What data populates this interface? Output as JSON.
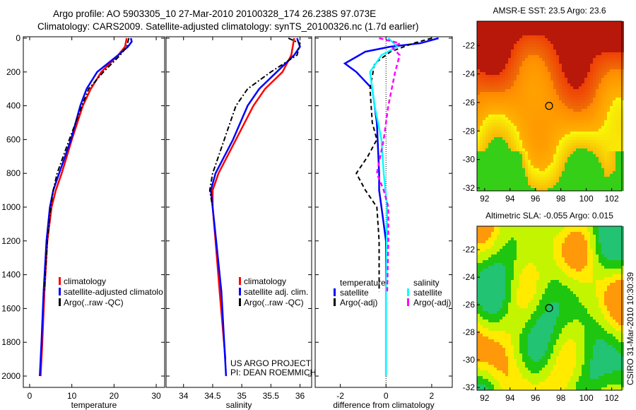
{
  "title": {
    "line1": "Argo profile: AO 5903305_10 27-Mar-2010 20100328_174 26.238S 97.073E",
    "line2": "Climatology: CARS2009. Satellite-adjusted climatology: synTS_20100326.nc (1.7d earlier)"
  },
  "credit": "CSIRO 31-Mar-2010 10:30:39",
  "project_note": [
    "US ARGO PROJECT",
    "PI: DEAN ROEMMICH"
  ],
  "colors": {
    "red": "#ff0000",
    "blue": "#0000ff",
    "black": "#000000",
    "cyan": "#00ffff",
    "magenta": "#ff00ff"
  },
  "chart_data": [
    {
      "type": "line",
      "xlabel": "temperature",
      "ylabel": "",
      "xlim": [
        -1.5,
        32
      ],
      "ylim": [
        2000,
        0
      ],
      "xticks": [
        "0",
        "10",
        "20",
        "30"
      ],
      "xtickvals": [
        0,
        10,
        20,
        30
      ],
      "yticks": [
        "0",
        "200",
        "400",
        "600",
        "800",
        "1000",
        "1200",
        "1400",
        "1600",
        "1800",
        "2000"
      ],
      "legend": [
        "climatology",
        "satellite-adjusted climatolo",
        "Argo(..raw -QC)"
      ],
      "legend_placement": "bottom-right",
      "series": [
        {
          "name": "climatology",
          "color": "red",
          "style": "solid",
          "depth": [
            0,
            50,
            100,
            200,
            300,
            400,
            600,
            800,
            900,
            1000,
            1200,
            1500,
            1800,
            2000
          ],
          "values": [
            23,
            22.6,
            21,
            17,
            14.5,
            12.6,
            10,
            7.6,
            6.2,
            5.2,
            4.2,
            3.5,
            3,
            2.6
          ]
        },
        {
          "name": "satellite-adjusted climatology",
          "color": "blue",
          "style": "solid",
          "depth": [
            0,
            20,
            50,
            100,
            200,
            300,
            400,
            600,
            800,
            900,
            1000,
            1200,
            1500,
            1800,
            2000
          ],
          "values": [
            24,
            24.2,
            23.3,
            21,
            16,
            13.5,
            12,
            9.8,
            7,
            5.6,
            4.8,
            4,
            3.3,
            2.8,
            2.4
          ]
        },
        {
          "name": "Argo(..raw -QC)",
          "color": "black",
          "style": "dashdot",
          "depth": [
            0,
            50,
            100,
            200,
            300,
            400,
            600,
            800,
            900,
            1000,
            1200,
            1400,
            1500
          ],
          "values": [
            23.5,
            23,
            21.5,
            17.5,
            14,
            12.4,
            9.4,
            6.5,
            5.6,
            5,
            4.2,
            3.7,
            3.5
          ]
        }
      ]
    },
    {
      "type": "line",
      "xlabel": "salinity",
      "xlim": [
        33.7,
        36.2
      ],
      "ylim": [
        2000,
        0
      ],
      "xticks": [
        "34",
        "34.5",
        "35",
        "35.5",
        "36"
      ],
      "xtickvals": [
        34,
        34.5,
        35,
        35.5,
        36
      ],
      "legend": [
        "climatology",
        "satellite adj. clim.",
        "Argo(..raw -QC)"
      ],
      "legend_placement": "bottom-right",
      "series": [
        {
          "name": "climatology",
          "color": "red",
          "style": "solid",
          "depth": [
            0,
            100,
            200,
            300,
            400,
            600,
            800,
            900,
            1000,
            1200,
            1500,
            1900
          ],
          "values": [
            35.9,
            35.85,
            35.7,
            35.4,
            35.2,
            34.9,
            34.6,
            34.5,
            34.5,
            34.55,
            34.62,
            34.72
          ]
        },
        {
          "name": "satellite adj. clim.",
          "color": "blue",
          "style": "solid",
          "depth": [
            0,
            50,
            100,
            200,
            300,
            400,
            600,
            800,
            900,
            1000,
            1200,
            1500,
            2000
          ],
          "values": [
            35.95,
            36,
            35.9,
            35.6,
            35.3,
            35.1,
            34.85,
            34.55,
            34.47,
            34.5,
            34.56,
            34.65,
            34.73
          ]
        },
        {
          "name": "Argo(..raw -QC)",
          "color": "black",
          "style": "dashdot",
          "depth": [
            0,
            30,
            100,
            200,
            300,
            400,
            600,
            800,
            900,
            1000
          ],
          "values": [
            35.8,
            36,
            35.95,
            35.5,
            35.1,
            34.9,
            34.7,
            34.5,
            34.45,
            34.5
          ]
        }
      ]
    },
    {
      "type": "line",
      "xlabel": "difference from climatology",
      "xlim": [
        -3.1,
        2.9
      ],
      "ylim": [
        2000,
        0
      ],
      "xticks": [
        "-2",
        "0",
        "2"
      ],
      "xtickvals": [
        -2,
        0,
        2
      ],
      "legend_groups": [
        {
          "title": "temperature",
          "items": [
            "satellite",
            "Argo(-adj)"
          ]
        },
        {
          "title": "salinity",
          "items": [
            "satellite",
            "Argo(-adj)"
          ]
        }
      ],
      "series": [
        {
          "name": "temperature satellite",
          "color": "blue",
          "style": "solid",
          "depth": [
            0,
            30,
            50,
            80,
            150,
            200,
            300,
            500,
            800,
            900,
            1000,
            1200,
            1500,
            2000
          ],
          "values": [
            2.3,
            1.5,
            0.2,
            -0.9,
            -1.8,
            -1.3,
            -0.6,
            -0.4,
            -0.3,
            -0.3,
            -0.2,
            0,
            0,
            0
          ]
        },
        {
          "name": "temperature Argo(-adj)",
          "color": "black",
          "style": "dashed",
          "depth": [
            0,
            30,
            80,
            150,
            300,
            500,
            600,
            700,
            800,
            900,
            1000,
            1200,
            1500
          ],
          "values": [
            2,
            1.2,
            0.2,
            -0.5,
            -0.7,
            -0.6,
            -0.4,
            -0.8,
            -1.3,
            -0.9,
            -0.4,
            -0.3,
            -0.3
          ]
        },
        {
          "name": "salinity satellite",
          "color": "cyan",
          "style": "solid",
          "depth": [
            0,
            50,
            100,
            200,
            400,
            600,
            800,
            1000,
            1500,
            2000
          ],
          "values": [
            0.1,
            0.5,
            -0.2,
            -0.7,
            -0.5,
            -0.2,
            -0.1,
            0.05,
            0,
            0
          ]
        },
        {
          "name": "salinity Argo(-adj)",
          "color": "magenta",
          "style": "dashed",
          "depth": [
            0,
            30,
            60,
            100,
            200,
            400,
            600,
            800,
            900,
            1000,
            1200,
            1500
          ],
          "values": [
            -0.3,
            0.6,
            0.3,
            0.6,
            0.4,
            0.1,
            -0.1,
            -0.4,
            -0.1,
            0.1,
            0.1,
            0.05
          ]
        }
      ]
    },
    {
      "type": "heatmap",
      "title": "AMSR-E SST: 23.5 Argo: 23.6",
      "xlim": [
        91.4,
        102.8
      ],
      "ylim": [
        -32.2,
        -20.3
      ],
      "xticks": [
        "92",
        "94",
        "96",
        "98",
        "100",
        "102"
      ],
      "yticks": [
        "-22",
        "-24",
        "-26",
        "-28",
        "-30",
        "-32"
      ],
      "marker": {
        "lon": 97.073,
        "lat": -26.238
      }
    },
    {
      "type": "heatmap",
      "title": "Altimetric SLA: -0.055 Argo: 0.015",
      "xlim": [
        91.4,
        102.8
      ],
      "ylim": [
        -32.2,
        -20.3
      ],
      "xticks": [
        "92",
        "94",
        "96",
        "98",
        "100",
        "102"
      ],
      "yticks": [
        "-22",
        "-24",
        "-26",
        "-28",
        "-30",
        "-32"
      ],
      "marker": {
        "lon": 97.073,
        "lat": -26.238
      }
    }
  ]
}
